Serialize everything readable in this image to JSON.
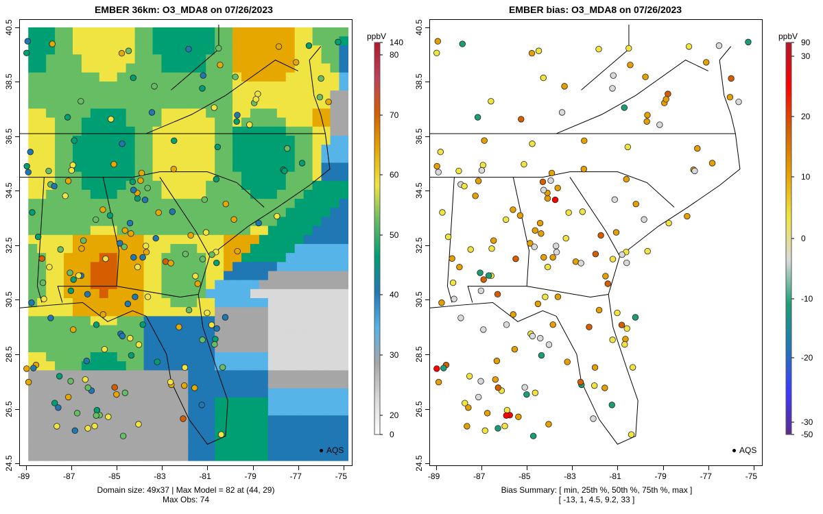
{
  "left_panel": {
    "title": "EMBER 36km: O3_MDA8 on 07/26/2023",
    "unit": "ppbV",
    "footer_line1": "Domain size: 49x37 | Max Model = 82 at (44, 29)",
    "footer_line2": "Max Obs: 74",
    "legend_label": "AQS",
    "colorbar_labels": [
      "140",
      "80",
      "70",
      "60",
      "50",
      "40",
      "30",
      "20",
      "0"
    ]
  },
  "right_panel": {
    "title": "EMBER bias: O3_MDA8 on 07/26/2023",
    "unit": "ppbV",
    "footer_line1": "Bias Summary: [ min, 25th %, 50th %, 75th %, max ]",
    "footer_line2": "[ -13,   1,   4.5,   9.2,   33 ]",
    "legend_label": "AQS",
    "colorbar_labels": [
      "90",
      "30",
      "20",
      "10",
      "0",
      "-10",
      "-20",
      "-30",
      "-50"
    ]
  },
  "axes": {
    "x_ticks": [
      "-89",
      "-87",
      "-85",
      "-83",
      "-81",
      "-79",
      "-77",
      "-75"
    ],
    "y_ticks": [
      "40.5",
      "38.5",
      "36.5",
      "34.5",
      "32.5",
      "30.5",
      "28.5",
      "26.5",
      "24.5"
    ],
    "lon_range": [
      -89.3,
      -74.6
    ],
    "lat_range": [
      24.4,
      40.8
    ]
  },
  "bias_summary": {
    "min": -13,
    "p25": 1,
    "p50": 4.5,
    "p75": 9.2,
    "max": 33
  },
  "max_model": 82,
  "max_obs": 74,
  "colors": {
    "ozone_scale": [
      "#ffffff",
      "#d9d9d9",
      "#a6a6a6",
      "#56b4e9",
      "#1f78b4",
      "#009e73",
      "#66bd63",
      "#f0e442",
      "#e6a800",
      "#d55e00",
      "#c0405a",
      "#b2182b"
    ],
    "bias_scale": [
      "#5e2a8c",
      "#3b3bff",
      "#1f78b4",
      "#1b9e77",
      "#d9d9d9",
      "#f0e442",
      "#e69f00",
      "#d55e00",
      "#ff0000",
      "#b2182b"
    ]
  }
}
